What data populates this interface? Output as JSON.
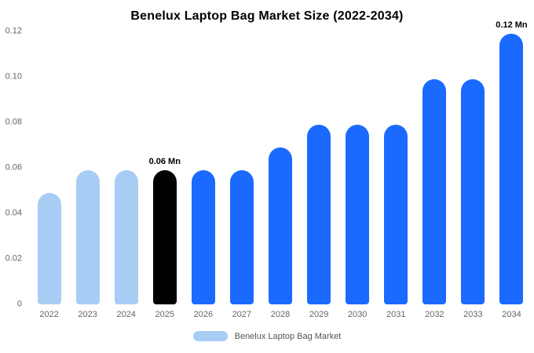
{
  "chart_data": {
    "type": "bar",
    "title": "Benelux Laptop Bag Market Size (2022-2034)",
    "categories": [
      "2022",
      "2023",
      "2024",
      "2025",
      "2026",
      "2027",
      "2028",
      "2029",
      "2030",
      "2031",
      "2032",
      "2033",
      "2034"
    ],
    "values": [
      0.049,
      0.059,
      0.059,
      0.059,
      0.059,
      0.059,
      0.069,
      0.079,
      0.079,
      0.079,
      0.099,
      0.099,
      0.119
    ],
    "bar_colors": [
      "#a8cdf4",
      "#a8cdf4",
      "#a8cdf4",
      "#000000",
      "#1a6aff",
      "#1a6aff",
      "#1a6aff",
      "#1a6aff",
      "#1a6aff",
      "#1a6aff",
      "#1a6aff",
      "#1a6aff",
      "#1a6aff"
    ],
    "ylim": [
      0,
      0.12
    ],
    "yticks": [
      {
        "v": 0,
        "label": "0"
      },
      {
        "v": 0.02,
        "label": "0.02"
      },
      {
        "v": 0.04,
        "label": "0.04"
      },
      {
        "v": 0.06,
        "label": "0.06"
      },
      {
        "v": 0.08,
        "label": "0.08"
      },
      {
        "v": 0.1,
        "label": "0.10"
      },
      {
        "v": 0.12,
        "label": "0.12"
      }
    ],
    "annotations": [
      {
        "index": 3,
        "category": "2025",
        "text": "0.06 Mn"
      },
      {
        "index": 12,
        "category": "2034",
        "text": "0.12 Mn"
      }
    ],
    "xlabel": "",
    "ylabel": "",
    "grid": false,
    "legend_position": "bottom"
  },
  "legend": {
    "label": "Benelux Laptop Bag Market",
    "swatch_color": "#a8cdf4"
  }
}
